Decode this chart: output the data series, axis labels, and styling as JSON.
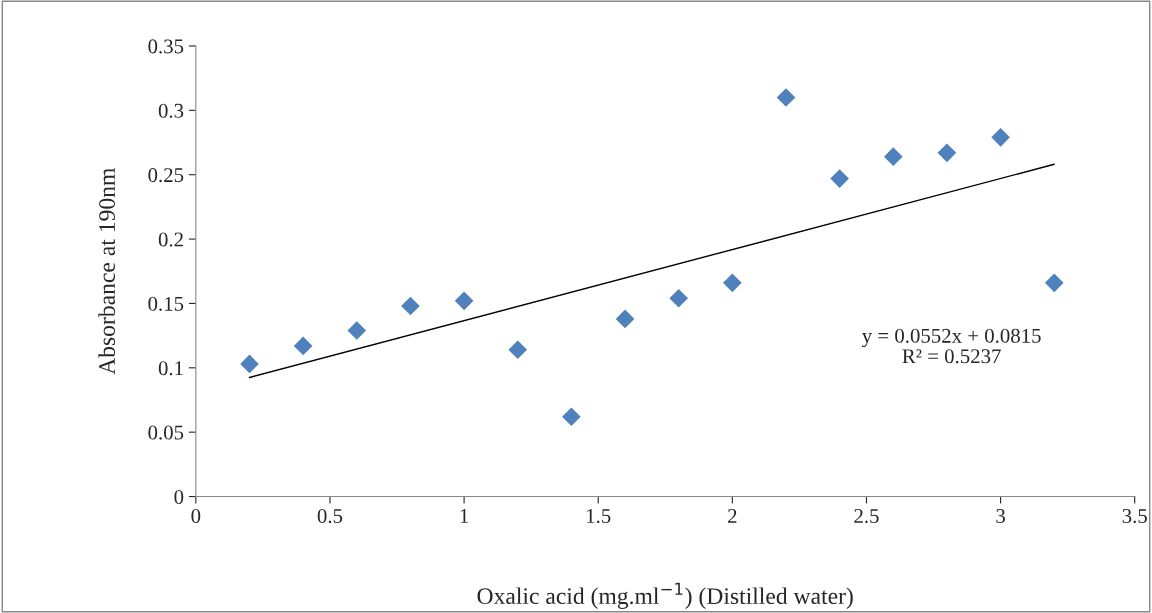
{
  "chart_data": {
    "type": "scatter",
    "xlabel": "Oxalic acid (mg.ml$^{−1}$) (Distilled water)",
    "ylabel": "Absorbance at 190nm",
    "series": [
      {
        "color": "#4f81bd",
        "marker": "diamond",
        "x": [
          0.2,
          0.4,
          0.6,
          0.8,
          1.0,
          1.2,
          1.4,
          1.6,
          1.8,
          2.0,
          2.2,
          2.4,
          2.6,
          2.8,
          3.0,
          3.2
        ],
        "values": [
          0.103,
          0.117,
          0.129,
          0.148,
          0.152,
          0.114,
          0.062,
          0.138,
          0.154,
          0.166,
          0.31,
          0.247,
          0.264,
          0.267,
          0.279,
          0.166
        ]
      },
      {
        "type": "line",
        "color": "#000000",
        "marker": "none",
        "x": [
          0.2,
          3.2
        ],
        "values": [
          0.0925,
          0.2581
        ]
      }
    ],
    "annotations": [
      "y = 0.0552x + 0.0815\nR² = 0.5237"
    ],
    "xlim": [
      0,
      3.5
    ],
    "xticks": [
      0,
      0.5,
      1,
      1.5,
      2,
      2.5,
      3,
      3.5
    ],
    "ylim": [
      0,
      0.35
    ],
    "yticks": [
      0,
      0.05,
      0.1,
      0.15,
      0.2,
      0.25,
      0.3,
      0.35
    ],
    "grid": false,
    "legend": false
  }
}
